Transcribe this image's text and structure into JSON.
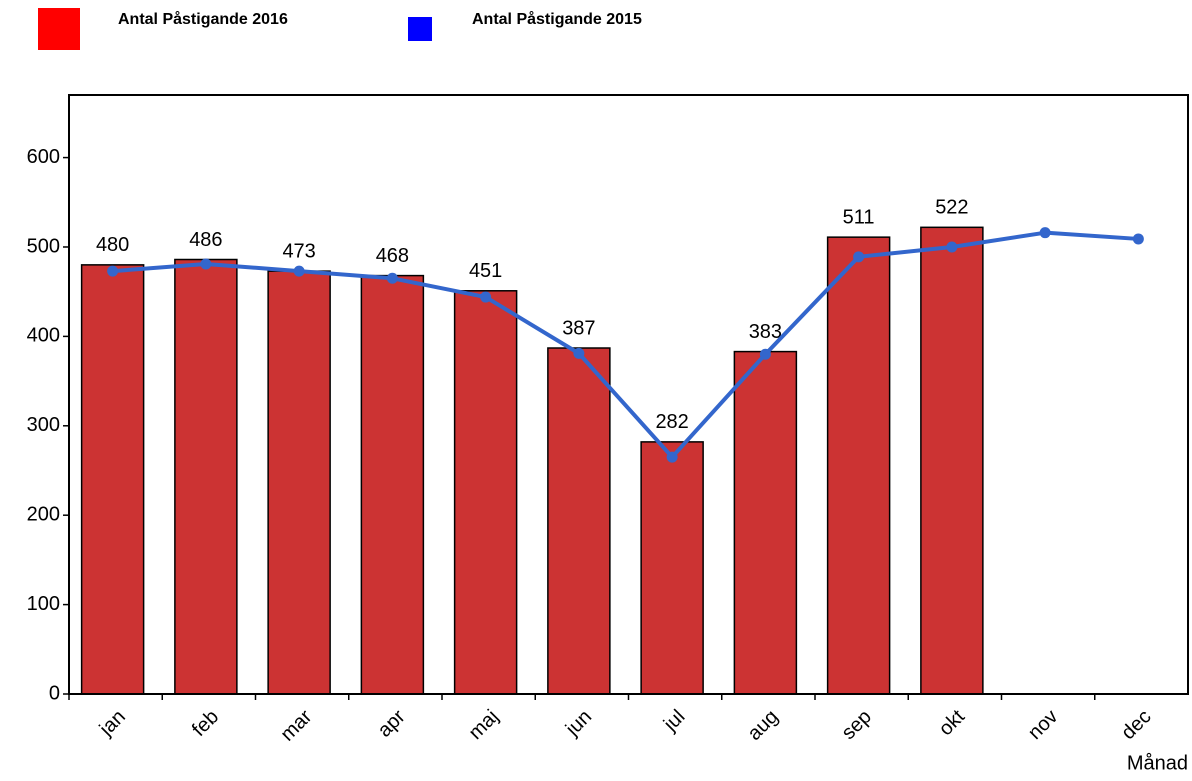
{
  "chart_data": {
    "type": "bar-line",
    "x_label": "Månad",
    "categories": [
      "jan",
      "feb",
      "mar",
      "apr",
      "maj",
      "jun",
      "jul",
      "aug",
      "sep",
      "okt",
      "nov",
      "dec"
    ],
    "series": [
      {
        "name": "Antal Påstigande 2016",
        "type": "bar",
        "color": "#cc3333",
        "legend_color": "#ff0000",
        "values": [
          480,
          486,
          473,
          468,
          451,
          387,
          282,
          383,
          511,
          522,
          null,
          null
        ]
      },
      {
        "name": "Antal Påstigande 2015",
        "type": "line",
        "color": "#3366cc",
        "legend_color": "#0000ff",
        "values": [
          473,
          481,
          473,
          465,
          444,
          381,
          265,
          380,
          489,
          500,
          516,
          509
        ]
      }
    ],
    "ylim": [
      0,
      670
    ],
    "yticks": [
      0,
      100,
      200,
      300,
      400,
      500,
      600
    ]
  }
}
